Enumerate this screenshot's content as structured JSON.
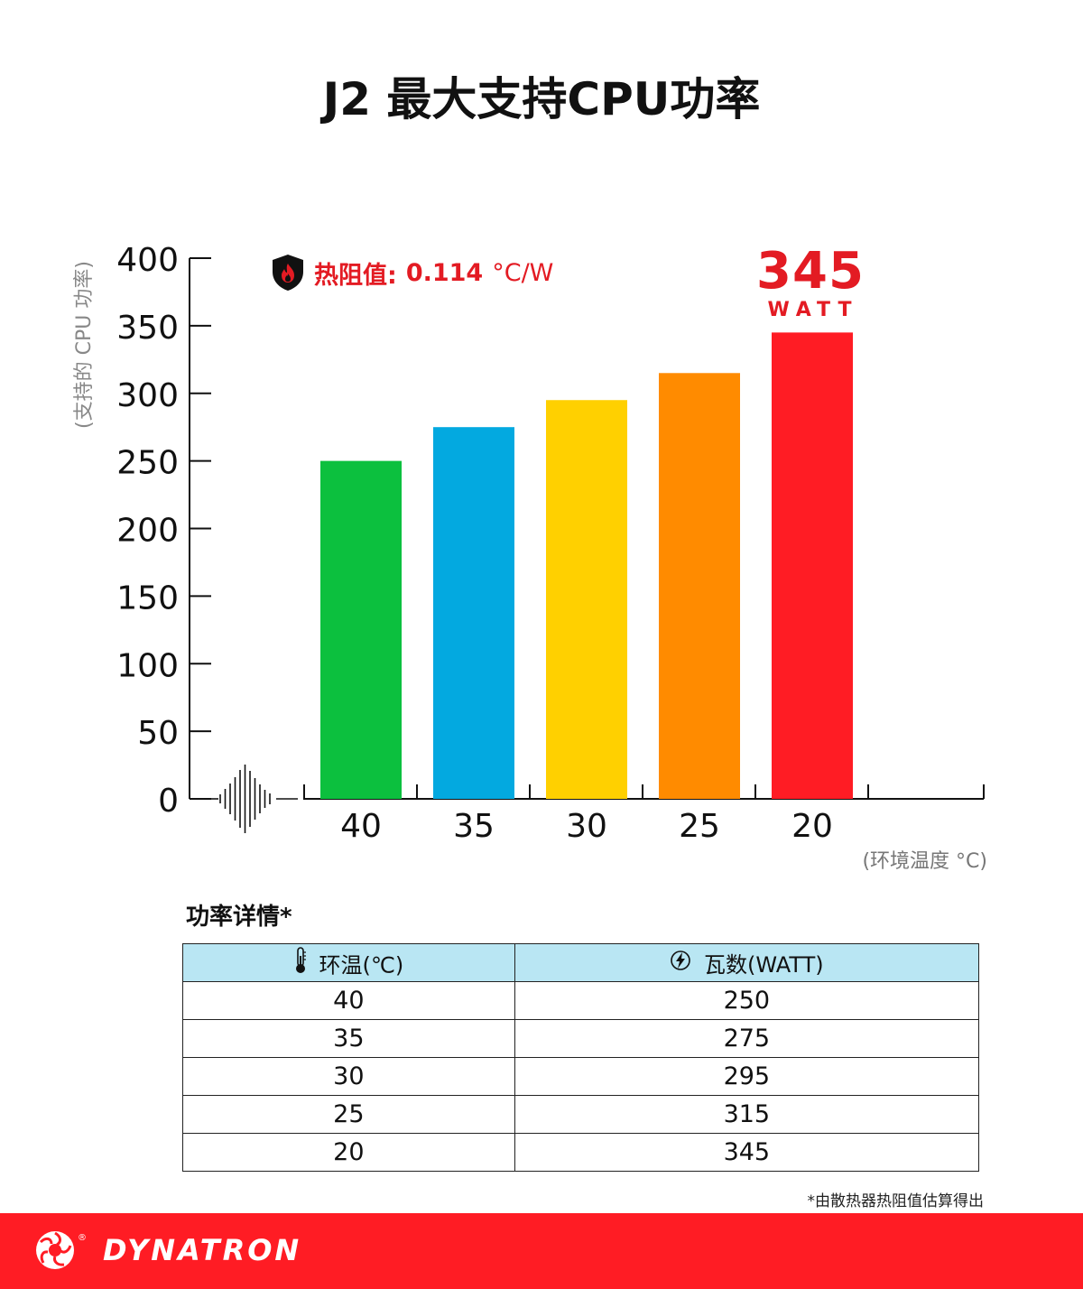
{
  "title": "J2 最大支持CPU功率",
  "chart_data": {
    "type": "bar",
    "categories": [
      "40",
      "35",
      "30",
      "25",
      "20"
    ],
    "values": [
      250,
      275,
      295,
      315,
      345
    ],
    "colors": [
      "#0cc03e",
      "#03a9e0",
      "#ffd000",
      "#ff8b00",
      "#ff1c24"
    ],
    "ylabel": "(支持的 CPU 功率)",
    "xlabel": "(环境温度 °C)",
    "ylim": [
      0,
      400
    ],
    "yticks": [
      "0",
      "50",
      "100",
      "150",
      "200",
      "250",
      "300",
      "350",
      "400"
    ],
    "grid": false,
    "highlight": {
      "value": "345",
      "unit": "WATT",
      "color": "#e31b23"
    }
  },
  "thermal_resistance": {
    "label": "热阻值:",
    "value": "0.114",
    "unit": "°C/W",
    "icon": "flame-shield-icon"
  },
  "details": {
    "title": "功率详情*",
    "headers": [
      {
        "icon": "thermometer-icon",
        "label": "环温(℃)"
      },
      {
        "icon": "lightning-icon",
        "label": "瓦数(WATT)"
      }
    ],
    "rows": [
      [
        "40",
        "250"
      ],
      [
        "35",
        "275"
      ],
      [
        "30",
        "295"
      ],
      [
        "25",
        "315"
      ],
      [
        "20",
        "345"
      ]
    ],
    "header_color": "#b9e6f3"
  },
  "footnote": "*由散热器热阻值估算得出",
  "footer": {
    "brand": "DYNATRON",
    "registered": "®",
    "color": "#ff1c24"
  }
}
